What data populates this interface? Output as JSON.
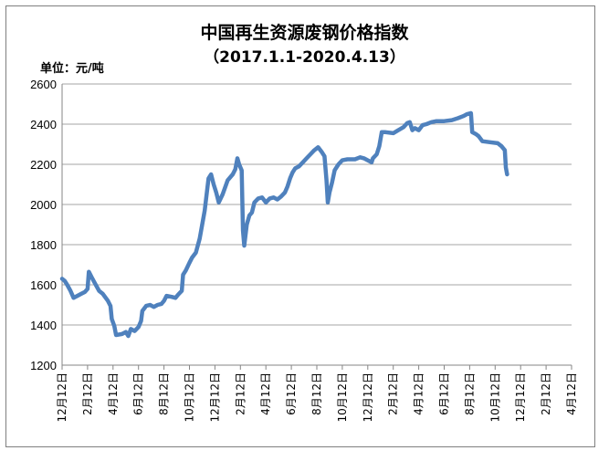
{
  "chart_data": {
    "type": "line",
    "title": "中国再生资源废钢价格指数",
    "subtitle": "（2017.1.1-2020.4.13）",
    "ylabel": "单位：元/吨",
    "ylim": [
      1200,
      2600
    ],
    "yticks": [
      1200,
      1400,
      1600,
      1800,
      2000,
      2200,
      2400,
      2600
    ],
    "grid": true,
    "line_color": "#4f81bd",
    "categories": [
      "12月12日",
      "2月12日",
      "4月12日",
      "6月12日",
      "8月12日",
      "10月12日",
      "12月12日",
      "2月12日",
      "4月12日",
      "6月12日",
      "8月12日",
      "10月12日",
      "12月12日",
      "2月12日",
      "4月12日",
      "6月12日",
      "8月12日",
      "10月12日",
      "12月12日",
      "2月12日",
      "4月12日"
    ],
    "series": [
      {
        "values": [
          [
            0,
            1630
          ],
          [
            0.1,
            1620
          ],
          [
            0.2,
            1600
          ],
          [
            0.33,
            1570
          ],
          [
            0.45,
            1535
          ],
          [
            0.6,
            1545
          ],
          [
            0.75,
            1555
          ],
          [
            0.9,
            1565
          ],
          [
            1.0,
            1580
          ],
          [
            1.05,
            1665
          ],
          [
            1.15,
            1640
          ],
          [
            1.3,
            1605
          ],
          [
            1.45,
            1570
          ],
          [
            1.6,
            1555
          ],
          [
            1.8,
            1520
          ],
          [
            1.9,
            1495
          ],
          [
            1.95,
            1430
          ],
          [
            2.05,
            1395
          ],
          [
            2.12,
            1350
          ],
          [
            2.35,
            1355
          ],
          [
            2.5,
            1365
          ],
          [
            2.6,
            1345
          ],
          [
            2.7,
            1380
          ],
          [
            2.85,
            1370
          ],
          [
            3.0,
            1390
          ],
          [
            3.1,
            1420
          ],
          [
            3.15,
            1470
          ],
          [
            3.3,
            1495
          ],
          [
            3.45,
            1500
          ],
          [
            3.6,
            1490
          ],
          [
            3.75,
            1500
          ],
          [
            3.9,
            1505
          ],
          [
            4.0,
            1520
          ],
          [
            4.1,
            1545
          ],
          [
            4.3,
            1540
          ],
          [
            4.45,
            1535
          ],
          [
            4.55,
            1550
          ],
          [
            4.7,
            1570
          ],
          [
            4.75,
            1650
          ],
          [
            4.85,
            1670
          ],
          [
            5.0,
            1710
          ],
          [
            5.1,
            1735
          ],
          [
            5.25,
            1760
          ],
          [
            5.4,
            1830
          ],
          [
            5.6,
            1970
          ],
          [
            5.75,
            2130
          ],
          [
            5.85,
            2150
          ],
          [
            5.95,
            2100
          ],
          [
            6.05,
            2060
          ],
          [
            6.15,
            2010
          ],
          [
            6.3,
            2050
          ],
          [
            6.5,
            2120
          ],
          [
            6.7,
            2150
          ],
          [
            6.8,
            2175
          ],
          [
            6.88,
            2230
          ],
          [
            6.95,
            2200
          ],
          [
            7.05,
            2170
          ],
          [
            7.1,
            1870
          ],
          [
            7.15,
            1795
          ],
          [
            7.25,
            1900
          ],
          [
            7.35,
            1945
          ],
          [
            7.45,
            1960
          ],
          [
            7.55,
            2010
          ],
          [
            7.7,
            2030
          ],
          [
            7.85,
            2035
          ],
          [
            8.0,
            2010
          ],
          [
            8.15,
            2030
          ],
          [
            8.3,
            2035
          ],
          [
            8.45,
            2025
          ],
          [
            8.6,
            2040
          ],
          [
            8.75,
            2060
          ],
          [
            8.85,
            2090
          ],
          [
            8.95,
            2130
          ],
          [
            9.05,
            2160
          ],
          [
            9.15,
            2180
          ],
          [
            9.3,
            2190
          ],
          [
            9.45,
            2210
          ],
          [
            9.6,
            2230
          ],
          [
            9.75,
            2250
          ],
          [
            9.9,
            2270
          ],
          [
            10.05,
            2285
          ],
          [
            10.2,
            2260
          ],
          [
            10.3,
            2240
          ],
          [
            10.38,
            2120
          ],
          [
            10.43,
            2010
          ],
          [
            10.5,
            2060
          ],
          [
            10.6,
            2110
          ],
          [
            10.7,
            2170
          ],
          [
            10.85,
            2200
          ],
          [
            11.0,
            2220
          ],
          [
            11.2,
            2225
          ],
          [
            11.5,
            2225
          ],
          [
            11.7,
            2235
          ],
          [
            11.85,
            2230
          ],
          [
            12.0,
            2220
          ],
          [
            12.15,
            2210
          ],
          [
            12.2,
            2230
          ],
          [
            12.35,
            2250
          ],
          [
            12.45,
            2290
          ],
          [
            12.55,
            2360
          ],
          [
            12.7,
            2360
          ],
          [
            13.0,
            2355
          ],
          [
            13.2,
            2370
          ],
          [
            13.4,
            2385
          ],
          [
            13.55,
            2405
          ],
          [
            13.65,
            2410
          ],
          [
            13.75,
            2370
          ],
          [
            13.85,
            2380
          ],
          [
            14.0,
            2370
          ],
          [
            14.15,
            2395
          ],
          [
            14.3,
            2400
          ],
          [
            14.5,
            2410
          ],
          [
            14.7,
            2415
          ],
          [
            15.0,
            2415
          ],
          [
            15.3,
            2420
          ],
          [
            15.55,
            2430
          ],
          [
            15.75,
            2440
          ],
          [
            15.9,
            2450
          ],
          [
            16.05,
            2455
          ],
          [
            16.1,
            2360
          ],
          [
            16.25,
            2350
          ],
          [
            16.35,
            2340
          ],
          [
            16.5,
            2315
          ],
          [
            16.8,
            2310
          ],
          [
            17.1,
            2305
          ],
          [
            17.25,
            2290
          ],
          [
            17.38,
            2270
          ],
          [
            17.42,
            2185
          ],
          [
            17.47,
            2150
          ]
        ]
      }
    ]
  }
}
